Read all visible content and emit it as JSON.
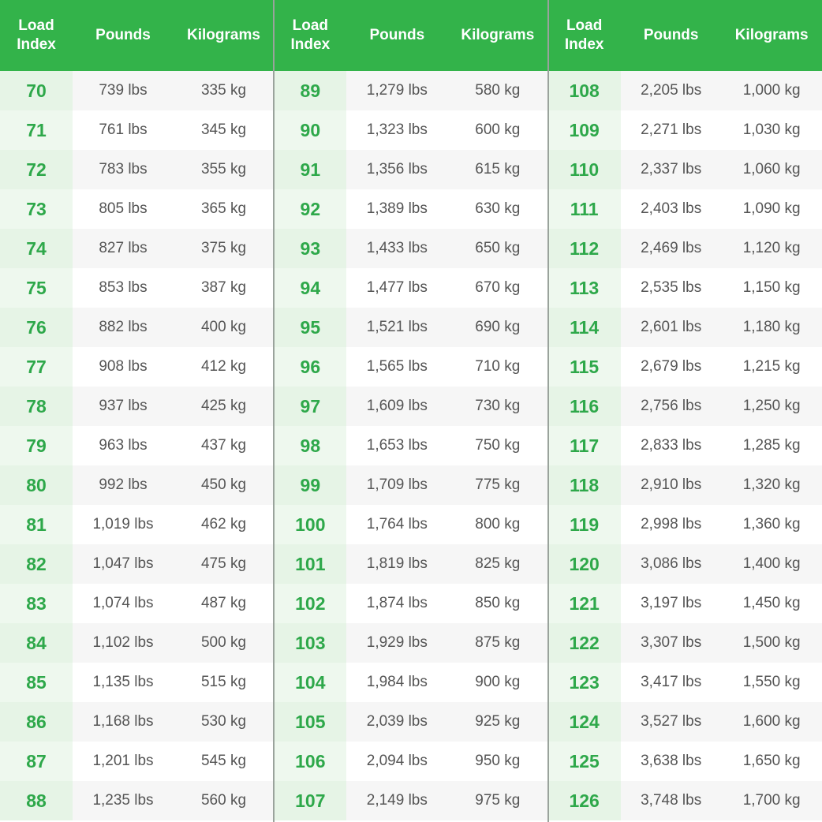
{
  "panels": [
    {
      "headers": [
        "Load Index",
        "Pounds",
        "Kilograms"
      ],
      "rows": [
        [
          "70",
          "739 lbs",
          "335 kg"
        ],
        [
          "71",
          "761 lbs",
          "345 kg"
        ],
        [
          "72",
          "783 lbs",
          "355 kg"
        ],
        [
          "73",
          "805 lbs",
          "365 kg"
        ],
        [
          "74",
          "827 lbs",
          "375 kg"
        ],
        [
          "75",
          "853 lbs",
          "387 kg"
        ],
        [
          "76",
          "882 lbs",
          "400 kg"
        ],
        [
          "77",
          "908 lbs",
          "412 kg"
        ],
        [
          "78",
          "937 lbs",
          "425 kg"
        ],
        [
          "79",
          "963 lbs",
          "437 kg"
        ],
        [
          "80",
          "992 lbs",
          "450 kg"
        ],
        [
          "81",
          "1,019 lbs",
          "462 kg"
        ],
        [
          "82",
          "1,047 lbs",
          "475 kg"
        ],
        [
          "83",
          "1,074 lbs",
          "487 kg"
        ],
        [
          "84",
          "1,102 lbs",
          "500 kg"
        ],
        [
          "85",
          "1,135 lbs",
          "515 kg"
        ],
        [
          "86",
          "1,168 lbs",
          "530 kg"
        ],
        [
          "87",
          "1,201 lbs",
          "545 kg"
        ],
        [
          "88",
          "1,235 lbs",
          "560 kg"
        ]
      ]
    },
    {
      "headers": [
        "Load Index",
        "Pounds",
        "Kilograms"
      ],
      "rows": [
        [
          "89",
          "1,279 lbs",
          "580 kg"
        ],
        [
          "90",
          "1,323 lbs",
          "600 kg"
        ],
        [
          "91",
          "1,356 lbs",
          "615 kg"
        ],
        [
          "92",
          "1,389 lbs",
          "630 kg"
        ],
        [
          "93",
          "1,433 lbs",
          "650 kg"
        ],
        [
          "94",
          "1,477 lbs",
          "670 kg"
        ],
        [
          "95",
          "1,521 lbs",
          "690 kg"
        ],
        [
          "96",
          "1,565 lbs",
          "710 kg"
        ],
        [
          "97",
          "1,609 lbs",
          "730 kg"
        ],
        [
          "98",
          "1,653 lbs",
          "750 kg"
        ],
        [
          "99",
          "1,709 lbs",
          "775 kg"
        ],
        [
          "100",
          "1,764 lbs",
          "800 kg"
        ],
        [
          "101",
          "1,819 lbs",
          "825 kg"
        ],
        [
          "102",
          "1,874 lbs",
          "850 kg"
        ],
        [
          "103",
          "1,929 lbs",
          "875 kg"
        ],
        [
          "104",
          "1,984 lbs",
          "900 kg"
        ],
        [
          "105",
          "2,039 lbs",
          "925 kg"
        ],
        [
          "106",
          "2,094 lbs",
          "950 kg"
        ],
        [
          "107",
          "2,149 lbs",
          "975 kg"
        ]
      ]
    },
    {
      "headers": [
        "Load Index",
        "Pounds",
        "Kilograms"
      ],
      "rows": [
        [
          "108",
          "2,205 lbs",
          "1,000 kg"
        ],
        [
          "109",
          "2,271 lbs",
          "1,030 kg"
        ],
        [
          "110",
          "2,337 lbs",
          "1,060 kg"
        ],
        [
          "111",
          "2,403 lbs",
          "1,090 kg"
        ],
        [
          "112",
          "2,469 lbs",
          "1,120 kg"
        ],
        [
          "113",
          "2,535 lbs",
          "1,150 kg"
        ],
        [
          "114",
          "2,601 lbs",
          "1,180 kg"
        ],
        [
          "115",
          "2,679 lbs",
          "1,215 kg"
        ],
        [
          "116",
          "2,756 lbs",
          "1,250 kg"
        ],
        [
          "117",
          "2,833 lbs",
          "1,285 kg"
        ],
        [
          "118",
          "2,910 lbs",
          "1,320 kg"
        ],
        [
          "119",
          "2,998 lbs",
          "1,360 kg"
        ],
        [
          "120",
          "3,086 lbs",
          "1,400 kg"
        ],
        [
          "121",
          "3,197 lbs",
          "1,450 kg"
        ],
        [
          "122",
          "3,307 lbs",
          "1,500 kg"
        ],
        [
          "123",
          "3,417 lbs",
          "1,550 kg"
        ],
        [
          "124",
          "3,527 lbs",
          "1,600 kg"
        ],
        [
          "125",
          "3,638 lbs",
          "1,650 kg"
        ],
        [
          "126",
          "3,748 lbs",
          "1,700 kg"
        ]
      ]
    }
  ]
}
